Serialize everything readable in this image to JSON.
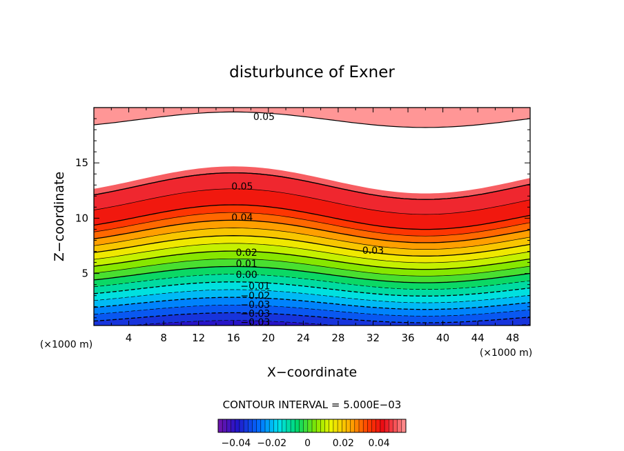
{
  "chart_data": {
    "type": "contour",
    "title": "disturbunce of Exner",
    "xlabel": "X−coordinate",
    "ylabel": "Z−coordinate",
    "x_unit": "(×1000 m)",
    "xlim": [
      0,
      50
    ],
    "ylim": [
      0.3,
      20
    ],
    "x_ticks": [
      4,
      8,
      12,
      16,
      20,
      24,
      28,
      32,
      36,
      40,
      44,
      48
    ],
    "y_ticks": [
      5,
      10,
      15
    ],
    "contour_interval_text": "CONTOUR INTERVAL = 5.000E−03",
    "contour_levels": [
      -0.045,
      -0.04,
      -0.035,
      -0.03,
      -0.025,
      -0.02,
      -0.015,
      -0.01,
      -0.005,
      0.0,
      0.005,
      0.01,
      0.015,
      0.02,
      0.025,
      0.03,
      0.035,
      0.04,
      0.045,
      0.05,
      0.055
    ],
    "contour_labels": [
      {
        "text": "0.05",
        "x": 19.5,
        "z": 19.2
      },
      {
        "text": "0.05",
        "x": 17.0,
        "z": 12.9
      },
      {
        "text": "0.04",
        "x": 17.0,
        "z": 10.1
      },
      {
        "text": "0.03",
        "x": 32.0,
        "z": 7.1
      },
      {
        "text": "0.02",
        "x": 17.5,
        "z": 6.9
      },
      {
        "text": "0.01",
        "x": 17.5,
        "z": 5.9
      },
      {
        "text": "0.00",
        "x": 17.5,
        "z": 4.9
      },
      {
        "text": "−0.01",
        "x": 18.5,
        "z": 3.9
      },
      {
        "text": "−0.02",
        "x": 18.5,
        "z": 3.0
      },
      {
        "text": "−0.03",
        "x": 18.5,
        "z": 2.2
      },
      {
        "text": "−0.03",
        "x": 18.5,
        "z": 1.4
      },
      {
        "text": "−0.03",
        "x": 18.5,
        "z": 0.6
      }
    ],
    "colorbar": {
      "min": -0.05,
      "max": 0.055,
      "tick_labels": [
        "−0.04",
        "−0.02",
        "0",
        "0.02",
        "0.04"
      ],
      "tick_values": [
        -0.04,
        -0.02,
        0,
        0.02,
        0.04
      ]
    }
  }
}
